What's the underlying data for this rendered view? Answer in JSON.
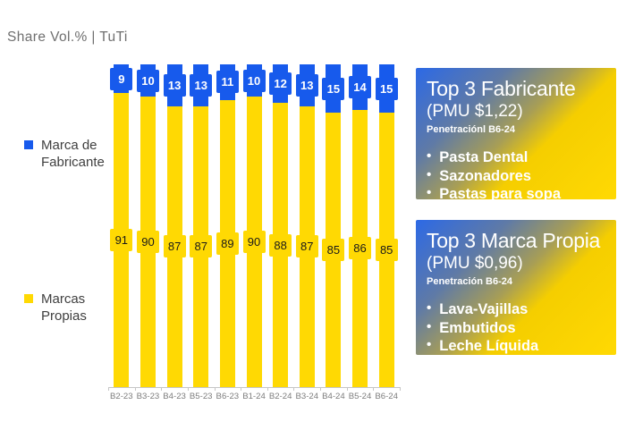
{
  "page": {
    "title": "Share Vol.% | TuTi"
  },
  "legend": {
    "fabricante": "Marca de Fabricante",
    "propias": "Marcas Propias"
  },
  "colors": {
    "fabricante_blue": "#175AEC",
    "propias_yellow": "#FFD903",
    "panel_gradient_start": "#2C69E6",
    "panel_gradient_end": "#FFD903",
    "axis_gray": "#C6C6C6",
    "text_gray": "#6F6F6F"
  },
  "chart_data": {
    "type": "bar",
    "variant": "100%-stacked-column",
    "title": "Share Vol.% | TuTi",
    "categories": [
      "B2-23",
      "B3-23",
      "B4-23",
      "B5-23",
      "B6-23",
      "B1-24",
      "B2-24",
      "B3-24",
      "B4-24",
      "B5-24",
      "B6-24"
    ],
    "series": [
      {
        "name": "Marca de Fabricante",
        "color": "#175AEC",
        "label_text_color": "#FFFFFF",
        "values": [
          9,
          10,
          13,
          13,
          11,
          10,
          12,
          13,
          15,
          14,
          15
        ]
      },
      {
        "name": "Marcas Propias",
        "color": "#FFD903",
        "label_text_color": "#1A1A1A",
        "values": [
          91,
          90,
          87,
          87,
          89,
          90,
          88,
          87,
          85,
          86,
          85
        ]
      }
    ],
    "ylim": [
      0,
      100
    ],
    "grid": false,
    "data_labels": true,
    "legend_position": "left",
    "xlabel": "",
    "ylabel": ""
  },
  "panels": [
    {
      "title": "Top 3 Fabricante",
      "subtitle": "(PMU $1,22)",
      "note": "Penetraciónl B6-24",
      "items": [
        "Pasta Dental",
        "Sazonadores",
        "Pastas para sopa"
      ]
    },
    {
      "title": "Top 3 Marca Propia",
      "subtitle": "(PMU $0,96)",
      "note": "Penetración B6-24",
      "items": [
        "Lava-Vajillas",
        "Embutidos",
        "Leche Líquida"
      ]
    }
  ]
}
